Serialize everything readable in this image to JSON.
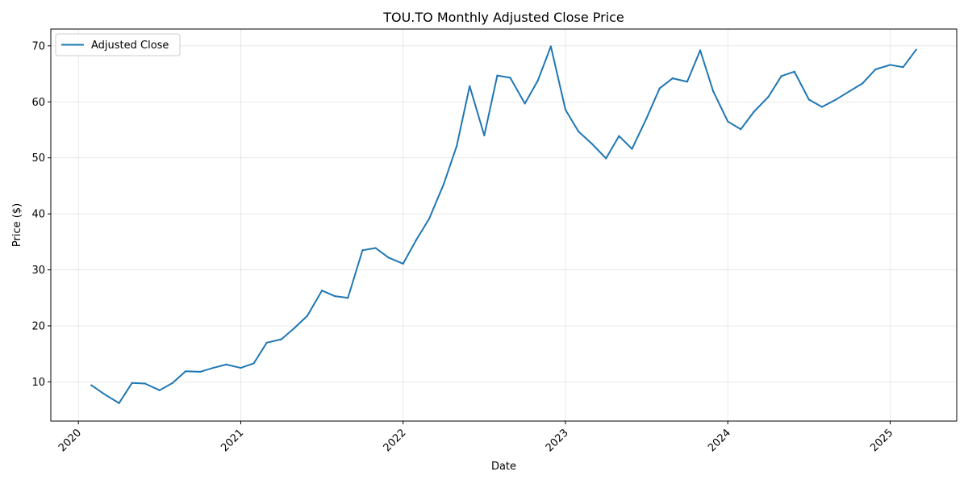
{
  "chart_data": {
    "type": "line",
    "title": "TOU.TO Monthly Adjusted Close Price",
    "xlabel": "Date",
    "ylabel": "Price ($)",
    "grid": true,
    "legend_position": "top-left",
    "xlim": [
      2019.83,
      2025.41
    ],
    "ylim": [
      3.0,
      73.0
    ],
    "x_ticks": [
      {
        "value": 2020,
        "label": "2020"
      },
      {
        "value": 2021,
        "label": "2021"
      },
      {
        "value": 2022,
        "label": "2022"
      },
      {
        "value": 2023,
        "label": "2023"
      },
      {
        "value": 2024,
        "label": "2024"
      },
      {
        "value": 2025,
        "label": "2025"
      }
    ],
    "y_ticks": [
      {
        "value": 10,
        "label": "10"
      },
      {
        "value": 20,
        "label": "20"
      },
      {
        "value": 30,
        "label": "30"
      },
      {
        "value": 40,
        "label": "40"
      },
      {
        "value": 50,
        "label": "50"
      },
      {
        "value": 60,
        "label": "60"
      },
      {
        "value": 70,
        "label": "70"
      }
    ],
    "series": [
      {
        "name": "Adjusted Close",
        "color": "#1f77b4",
        "points": [
          [
            2020.08,
            9.4
          ],
          [
            2020.16,
            7.8
          ],
          [
            2020.25,
            6.2
          ],
          [
            2020.33,
            9.8
          ],
          [
            2020.41,
            9.7
          ],
          [
            2020.5,
            8.5
          ],
          [
            2020.58,
            9.8
          ],
          [
            2020.66,
            11.9
          ],
          [
            2020.75,
            11.8
          ],
          [
            2020.83,
            12.5
          ],
          [
            2020.91,
            13.1
          ],
          [
            2021.0,
            12.5
          ],
          [
            2021.08,
            13.3
          ],
          [
            2021.16,
            17.0
          ],
          [
            2021.25,
            17.6
          ],
          [
            2021.33,
            19.6
          ],
          [
            2021.41,
            21.8
          ],
          [
            2021.5,
            26.3
          ],
          [
            2021.58,
            25.3
          ],
          [
            2021.66,
            25.0
          ],
          [
            2021.75,
            33.5
          ],
          [
            2021.83,
            33.9
          ],
          [
            2021.91,
            32.2
          ],
          [
            2022.0,
            31.1
          ],
          [
            2022.08,
            35.3
          ],
          [
            2022.16,
            39.1
          ],
          [
            2022.25,
            45.3
          ],
          [
            2022.33,
            52.1
          ],
          [
            2022.41,
            62.8
          ],
          [
            2022.5,
            54.0
          ],
          [
            2022.58,
            64.7
          ],
          [
            2022.66,
            64.3
          ],
          [
            2022.75,
            59.7
          ],
          [
            2022.83,
            63.8
          ],
          [
            2022.91,
            69.9
          ],
          [
            2023.0,
            58.6
          ],
          [
            2023.08,
            54.7
          ],
          [
            2023.16,
            52.6
          ],
          [
            2023.25,
            49.9
          ],
          [
            2023.33,
            53.9
          ],
          [
            2023.41,
            51.6
          ],
          [
            2023.5,
            57.1
          ],
          [
            2023.58,
            62.4
          ],
          [
            2023.66,
            64.2
          ],
          [
            2023.75,
            63.6
          ],
          [
            2023.83,
            69.2
          ],
          [
            2023.91,
            61.9
          ],
          [
            2024.0,
            56.5
          ],
          [
            2024.08,
            55.1
          ],
          [
            2024.16,
            58.2
          ],
          [
            2024.25,
            60.9
          ],
          [
            2024.33,
            64.6
          ],
          [
            2024.41,
            65.4
          ],
          [
            2024.5,
            60.4
          ],
          [
            2024.58,
            59.1
          ],
          [
            2024.66,
            60.3
          ],
          [
            2024.75,
            61.9
          ],
          [
            2024.83,
            63.3
          ],
          [
            2024.91,
            65.8
          ],
          [
            2025.0,
            66.6
          ],
          [
            2025.08,
            66.2
          ],
          [
            2025.16,
            69.3
          ]
        ]
      }
    ]
  }
}
